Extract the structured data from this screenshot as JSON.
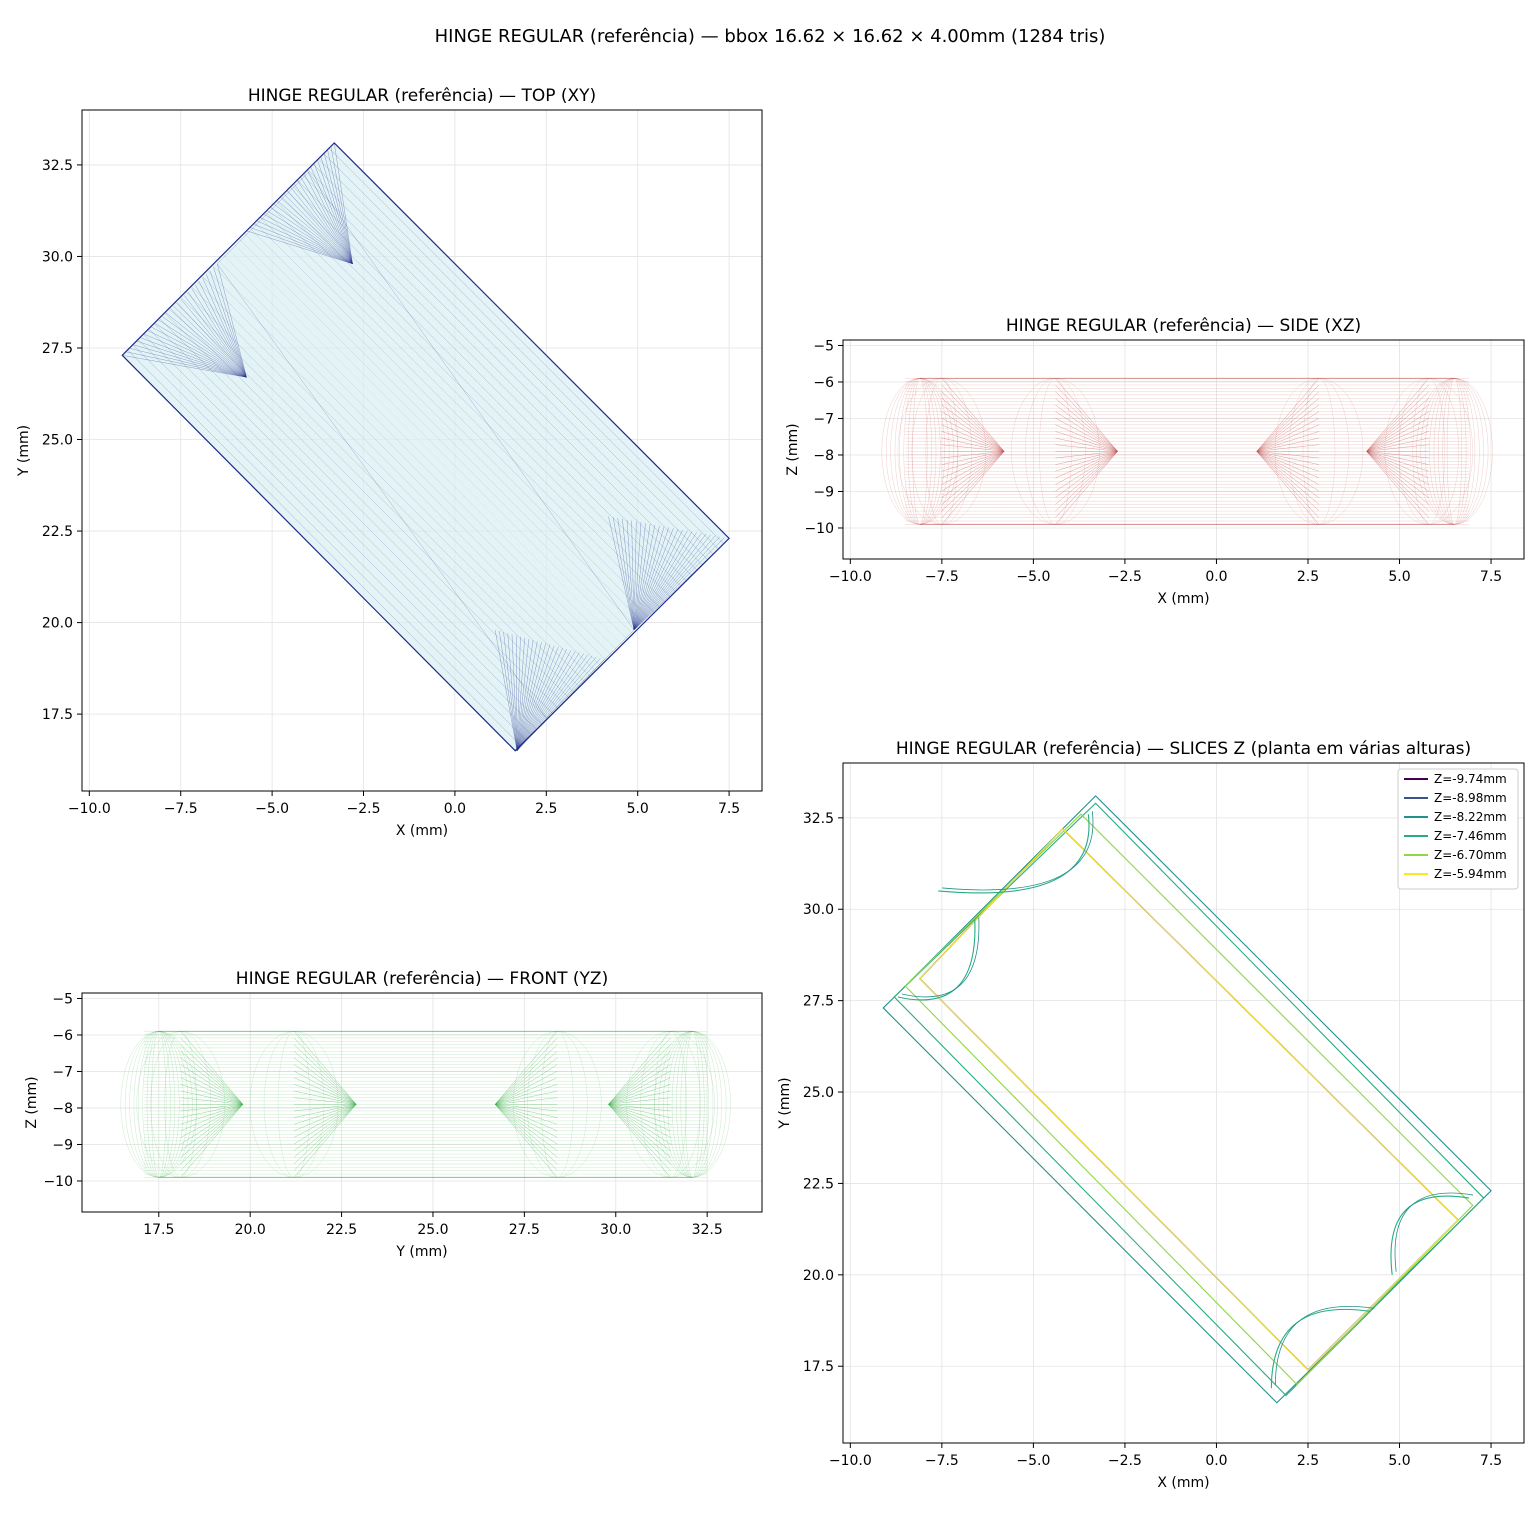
{
  "figure": {
    "suptitle": "HINGE REGULAR (referência) — bbox 16.62 × 16.62 × 4.00mm (1284 tris)"
  },
  "colors": {
    "top_edge": "#1f2a88",
    "top_fill": "#d9f0f2",
    "side_edge": "#c0504d",
    "front_edge": "#3cb04a",
    "grid": "#e3e3e3"
  },
  "chart_data": [
    {
      "id": "top",
      "type": "line",
      "title": "HINGE REGULAR (referência) — TOP (XY)",
      "xlabel": "X (mm)",
      "ylabel": "Y (mm)",
      "xlim": [
        -10.2,
        8.4
      ],
      "ylim": [
        15.4,
        34.0
      ],
      "xticks": [
        -10.0,
        -7.5,
        -5.0,
        -2.5,
        0.0,
        2.5,
        5.0,
        7.5
      ],
      "xtick_labels": [
        "−10.0",
        "−7.5",
        "−5.0",
        "−2.5",
        "0.0",
        "2.5",
        "5.0",
        "7.5"
      ],
      "yticks": [
        17.5,
        20.0,
        22.5,
        25.0,
        27.5,
        30.0,
        32.5
      ],
      "ytick_labels": [
        "17.5",
        "20.0",
        "22.5",
        "25.0",
        "27.5",
        "30.0",
        "32.5"
      ],
      "grid": true,
      "outline": [
        [
          -9.1,
          27.3
        ],
        [
          -3.3,
          33.1
        ],
        [
          7.5,
          22.3
        ],
        [
          1.65,
          16.5
        ]
      ],
      "inner": [
        [
          -6.5,
          29.8
        ],
        [
          -4.0,
          32.3
        ],
        [
          4.9,
          19.8
        ],
        [
          2.5,
          17.4
        ]
      ],
      "fans": [
        {
          "tip": [
            -5.7,
            26.7
          ],
          "from": [
            -9.1,
            27.3
          ],
          "to": [
            -6.5,
            29.8
          ]
        },
        {
          "tip": [
            -2.8,
            29.8
          ],
          "from": [
            -5.7,
            30.7
          ],
          "to": [
            -3.3,
            33.1
          ]
        },
        {
          "tip": [
            1.7,
            16.5
          ],
          "from": [
            1.1,
            19.8
          ],
          "to": [
            4.1,
            19.0
          ]
        },
        {
          "tip": [
            4.9,
            19.8
          ],
          "from": [
            4.2,
            22.9
          ],
          "to": [
            7.5,
            22.3
          ]
        }
      ]
    },
    {
      "id": "side",
      "type": "line",
      "title": "HINGE REGULAR (referência) — SIDE (XZ)",
      "xlabel": "X (mm)",
      "ylabel": "Z (mm)",
      "xlim": [
        -10.2,
        8.4
      ],
      "ylim": [
        -10.85,
        -4.85
      ],
      "xticks": [
        -10.0,
        -7.5,
        -5.0,
        -2.5,
        0.0,
        2.5,
        5.0,
        7.5
      ],
      "xtick_labels": [
        "−10.0",
        "−7.5",
        "−5.0",
        "−2.5",
        "0.0",
        "2.5",
        "5.0",
        "7.5"
      ],
      "yticks": [
        -10,
        -9,
        -8,
        -7,
        -6,
        -5
      ],
      "ytick_labels": [
        "−10",
        "−9",
        "−8",
        "−7",
        "−6",
        "−5"
      ],
      "grid": true,
      "body": {
        "x0": -9.1,
        "x1": 7.5,
        "zc": -7.9,
        "r": 2.0
      },
      "cones": [
        {
          "tip": -5.8,
          "base": -7.5
        },
        {
          "tip": -2.7,
          "base": -4.4
        },
        {
          "tip": 1.1,
          "base": 2.8
        },
        {
          "tip": 4.1,
          "base": 5.8
        }
      ]
    },
    {
      "id": "front",
      "type": "line",
      "title": "HINGE REGULAR (referência) — FRONT (YZ)",
      "xlabel": "Y (mm)",
      "ylabel": "Z (mm)",
      "xlim": [
        15.4,
        34.0
      ],
      "ylim": [
        -10.85,
        -4.85
      ],
      "xticks": [
        17.5,
        20.0,
        22.5,
        25.0,
        27.5,
        30.0,
        32.5
      ],
      "xtick_labels": [
        "17.5",
        "20.0",
        "22.5",
        "25.0",
        "27.5",
        "30.0",
        "32.5"
      ],
      "yticks": [
        -10,
        -9,
        -8,
        -7,
        -6,
        -5
      ],
      "ytick_labels": [
        "−10",
        "−9",
        "−8",
        "−7",
        "−6",
        "−5"
      ],
      "grid": true,
      "body": {
        "x0": 16.5,
        "x1": 33.1,
        "zc": -7.9,
        "r": 2.0
      },
      "cones": [
        {
          "tip": 19.8,
          "base": 18.1
        },
        {
          "tip": 22.9,
          "base": 21.2
        },
        {
          "tip": 26.7,
          "base": 28.4
        },
        {
          "tip": 29.8,
          "base": 31.5
        }
      ]
    },
    {
      "id": "slices",
      "type": "line",
      "title": "HINGE REGULAR (referência) — SLICES Z (planta em várias alturas)",
      "xlabel": "X (mm)",
      "ylabel": "Y (mm)",
      "xlim": [
        -10.2,
        8.4
      ],
      "ylim": [
        15.4,
        34.0
      ],
      "xticks": [
        -10.0,
        -7.5,
        -5.0,
        -2.5,
        0.0,
        2.5,
        5.0,
        7.5
      ],
      "xtick_labels": [
        "−10.0",
        "−7.5",
        "−5.0",
        "−2.5",
        "0.0",
        "2.5",
        "5.0",
        "7.5"
      ],
      "yticks": [
        17.5,
        20.0,
        22.5,
        25.0,
        27.5,
        30.0,
        32.5
      ],
      "ytick_labels": [
        "17.5",
        "20.0",
        "22.5",
        "25.0",
        "27.5",
        "30.0",
        "32.5"
      ],
      "grid": true,
      "legend_position": "top-right",
      "series": [
        {
          "name": "Z=-9.74mm",
          "color": "#440154",
          "points": [
            [
              -4.2,
              32.2
            ],
            [
              6.6,
              21.5
            ],
            [
              2.5,
              17.4
            ],
            [
              -8.1,
              28.1
            ]
          ]
        },
        {
          "name": "Z=-8.98mm",
          "color": "#3b528b",
          "points": [
            [
              -4.2,
              32.2
            ],
            [
              6.6,
              21.5
            ],
            [
              2.5,
              17.4
            ],
            [
              -8.1,
              28.1
            ]
          ]
        },
        {
          "name": "Z=-8.22mm",
          "color": "#21918c",
          "points": [
            [
              -9.1,
              27.3
            ],
            [
              -3.3,
              33.1
            ],
            [
              7.5,
              22.3
            ],
            [
              1.65,
              16.5
            ]
          ]
        },
        {
          "name": "Z=-7.46mm",
          "color": "#27ad81",
          "points": [
            [
              -8.8,
              27.6
            ],
            [
              -3.3,
              32.9
            ],
            [
              7.3,
              22.1
            ],
            [
              1.9,
              16.7
            ]
          ]
        },
        {
          "name": "Z=-6.70mm",
          "color": "#8fd744",
          "points": [
            [
              -8.5,
              27.9
            ],
            [
              -3.7,
              32.6
            ],
            [
              7.0,
              21.9
            ],
            [
              2.2,
              17.0
            ]
          ]
        },
        {
          "name": "Z=-5.94mm",
          "color": "#fde725",
          "points": [
            [
              -8.1,
              28.1
            ],
            [
              -4.2,
              32.2
            ],
            [
              6.6,
              21.5
            ],
            [
              2.5,
              17.4
            ]
          ]
        }
      ],
      "bumps": [
        {
          "a": [
            -8.7,
            27.6
          ],
          "b": [
            -6.6,
            29.7
          ],
          "peak": [
            -6.5,
            27.1
          ]
        },
        {
          "a": [
            -7.6,
            30.5
          ],
          "b": [
            -3.5,
            32.6
          ],
          "peak": [
            -3.2,
            30.1
          ]
        },
        {
          "a": [
            1.5,
            16.9
          ],
          "b": [
            4.2,
            19.0
          ],
          "peak": [
            1.5,
            19.4
          ]
        },
        {
          "a": [
            4.8,
            20.0
          ],
          "b": [
            6.9,
            22.1
          ],
          "peak": [
            4.5,
            22.5
          ]
        }
      ]
    }
  ]
}
